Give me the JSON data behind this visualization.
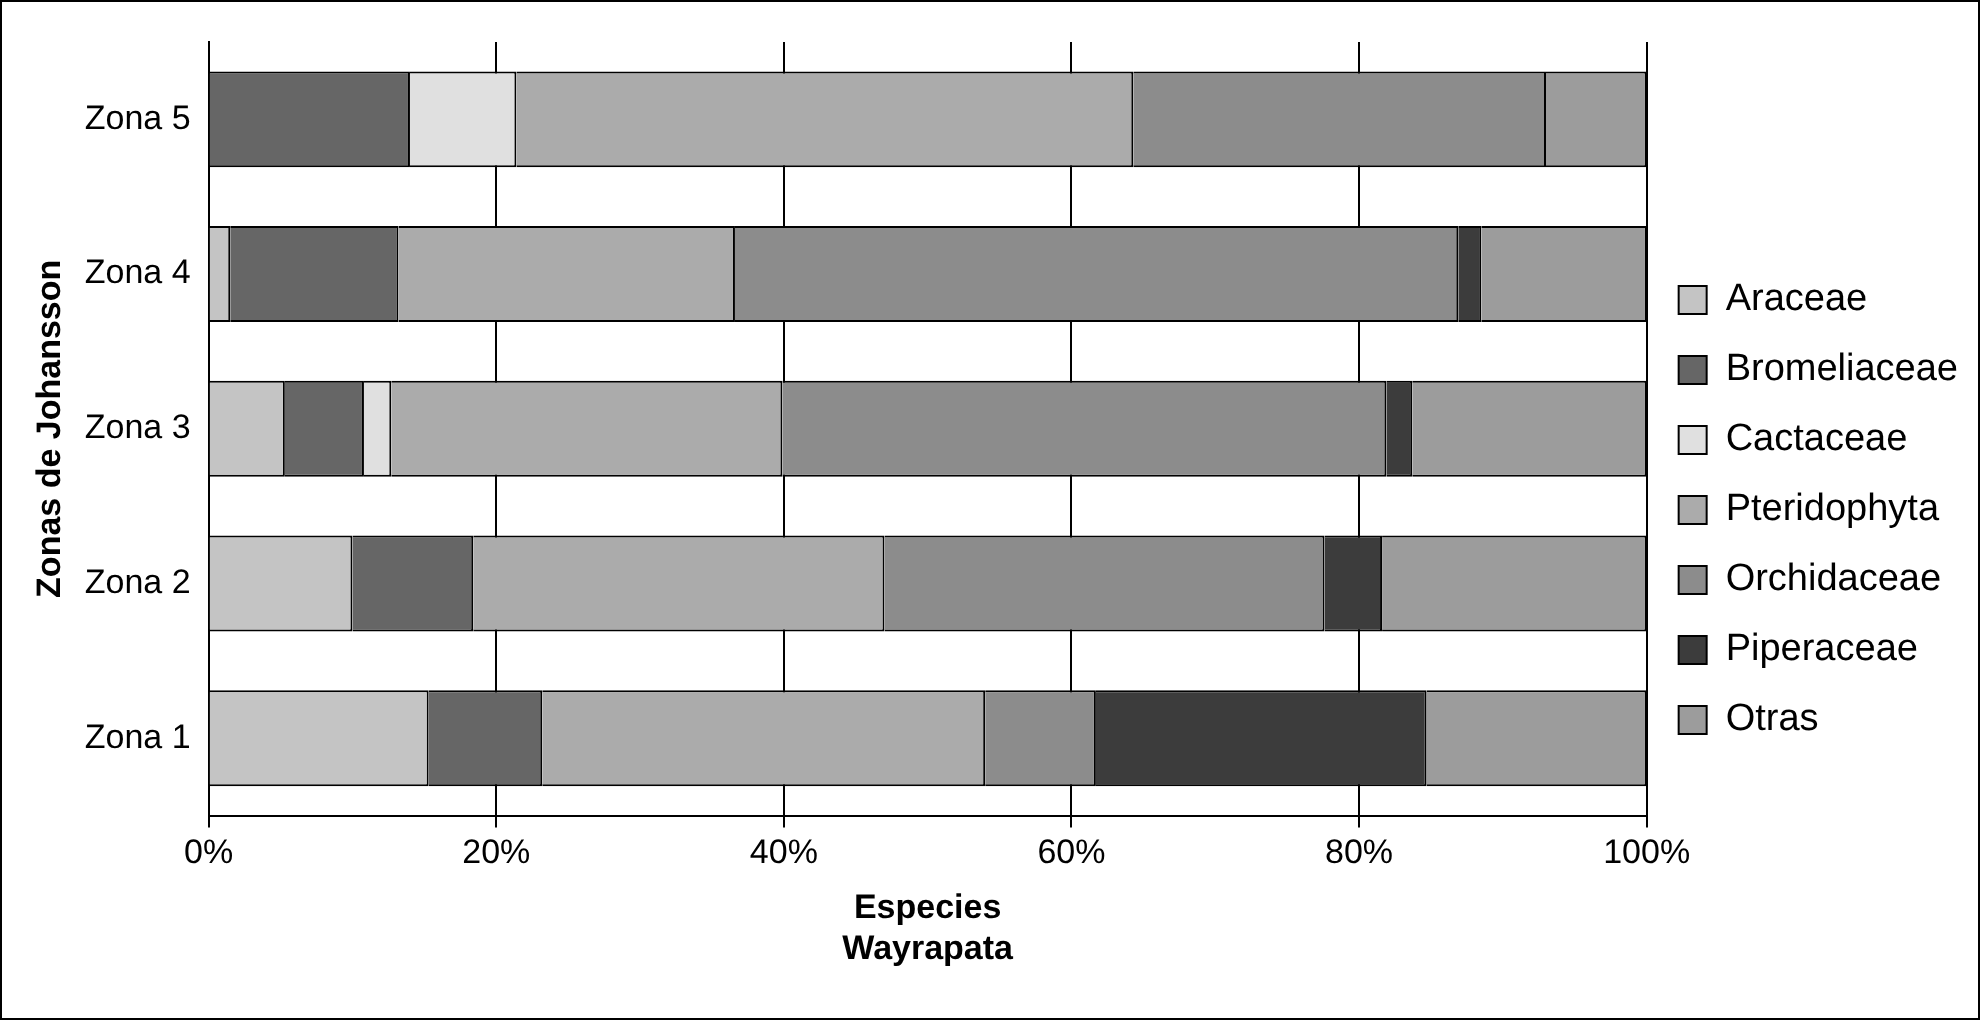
{
  "chart_data": {
    "type": "bar",
    "orientation": "horizontal",
    "stacked": true,
    "categories": [
      "Zona 5",
      "Zona 4",
      "Zona 3",
      "Zona 2",
      "Zona 1"
    ],
    "xlabel": "Especies\nWayrapata",
    "ylabel": "Zonas de Johansson",
    "xlim": [
      0,
      100
    ],
    "xticks": [
      {
        "value": 0,
        "label": "0%"
      },
      {
        "value": 20,
        "label": "20%"
      },
      {
        "value": 40,
        "label": "40%"
      },
      {
        "value": 60,
        "label": "60%"
      },
      {
        "value": 80,
        "label": "80%"
      },
      {
        "value": 100,
        "label": "100%"
      }
    ],
    "grid": "x",
    "legend": "right",
    "series": [
      {
        "name": "Araceae",
        "color": "#c4c4c4",
        "values": [
          0,
          1.5,
          5.3,
          10,
          15.3
        ]
      },
      {
        "name": "Bromeliaceae",
        "color": "#666666",
        "values": [
          14,
          11.7,
          5.5,
          8.4,
          7.9
        ]
      },
      {
        "name": "Cactaceae",
        "color": "#e0e0e0",
        "values": [
          7.4,
          0,
          1.9,
          0,
          0
        ]
      },
      {
        "name": "Pteridophyta",
        "color": "#ababab",
        "values": [
          42.9,
          23.4,
          27.2,
          28.6,
          30.8
        ]
      },
      {
        "name": "Orchidaceae",
        "color": "#8c8c8c",
        "values": [
          28.7,
          50.3,
          42,
          30.6,
          7.7
        ]
      },
      {
        "name": "Piperaceae",
        "color": "#3c3c3c",
        "values": [
          0,
          1.6,
          1.8,
          4,
          23
        ]
      },
      {
        "name": "Otras",
        "color": "#9c9c9c",
        "values": [
          7,
          11.5,
          16.3,
          18.4,
          15.3
        ]
      }
    ]
  }
}
